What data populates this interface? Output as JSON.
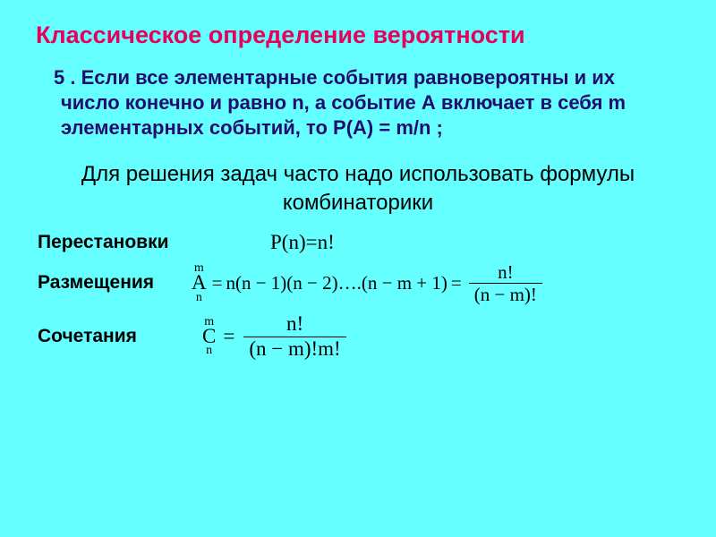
{
  "colors": {
    "background": "#66ffff",
    "title": "#e6005c",
    "bullet_text": "#1e0e6e",
    "body_text": "#000000",
    "formula_text": "#000000"
  },
  "typography": {
    "title_fontsize": 27,
    "bullet_fontsize": 22,
    "intro_fontsize": 24,
    "label_fontsize": 21,
    "formula_fontsize": 23,
    "formula_font": "Times New Roman"
  },
  "title": "Классическое определение вероятности",
  "bullet_text": "5 .   Если все элементарные события равновероятны и их число конечно и равно n, а событие А включает в себя m элементарных событий, то Р(А) = m/n ;",
  "intro_text": "Для решения задач часто надо использовать формулы комбинаторики",
  "rows": {
    "perm": {
      "label": "Перестановки",
      "formula": {
        "lhs": "P(n)",
        "rhs": "n!"
      }
    },
    "place": {
      "label": "Размещения",
      "formula": {
        "lhs_letter": "A",
        "lhs_sup": "m",
        "lhs_sub": "n",
        "mid": "n(n − 1)(n − 2)….(n − m + 1)",
        "frac_num": "n!",
        "frac_den": "(n − m)!"
      }
    },
    "comb": {
      "label": "Сочетания",
      "formula": {
        "lhs_letter": "C",
        "lhs_sup": "m",
        "lhs_sub": "n",
        "frac_num": "n!",
        "frac_den": "(n − m)!m!"
      }
    }
  },
  "eq": "="
}
